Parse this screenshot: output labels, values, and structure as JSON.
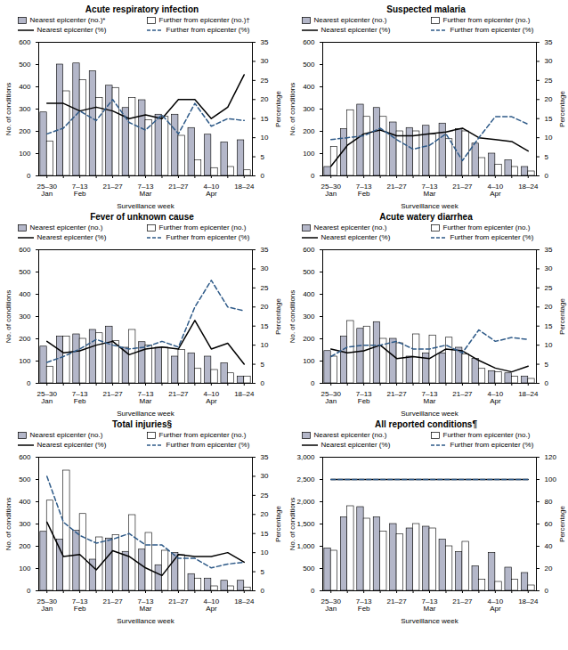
{
  "chart_data": [
    {
      "type": "bar",
      "title": "Acute respiratory infection",
      "x_label": "Surveillance week",
      "y_label": "No. of conditions",
      "y2_label": "Percentage",
      "legend": "top",
      "categories": [
        "25–30\nJan",
        null,
        "7–13\nFeb",
        null,
        "21–27",
        null,
        "7–13\nMar",
        null,
        "21–27",
        null,
        "4–10\nApr",
        null,
        "18–24"
      ],
      "ylim": [
        0,
        600
      ],
      "yticks": [
        0,
        100,
        200,
        300,
        400,
        500,
        600
      ],
      "y2lim": [
        0,
        35
      ],
      "y2ticks": [
        0,
        5,
        10,
        15,
        20,
        25,
        30,
        35
      ],
      "series": [
        {
          "name": "Nearest epicenter (no.)*",
          "type": "bar",
          "color": "#b4b7c9",
          "values": [
            285,
            500,
            505,
            470,
            405,
            305,
            340,
            275,
            275,
            215,
            185,
            150,
            160
          ]
        },
        {
          "name": "Further from epicenter (no.)†",
          "type": "bar",
          "color": "#ffffff",
          "values": [
            155,
            380,
            430,
            350,
            395,
            350,
            250,
            265,
            180,
            70,
            35,
            40,
            25
          ]
        },
        {
          "name": "Nearest epicenter (%)",
          "type": "line",
          "axis": "y2",
          "color": "#000000",
          "line_style": "solid",
          "values": [
            19,
            19,
            17,
            18,
            17,
            15,
            16,
            15,
            20,
            20,
            15,
            18,
            26.5
          ]
        },
        {
          "name": "Further from epicenter (%)",
          "type": "line",
          "axis": "y2",
          "color": "#2e5a88",
          "line_style": "dashed",
          "values": [
            11,
            12.5,
            17,
            14.5,
            20,
            14,
            12,
            16,
            11,
            19,
            13,
            15,
            14.5
          ]
        }
      ]
    },
    {
      "type": "bar",
      "title": "Suspected malaria",
      "x_label": "Surveillance week",
      "y_label": "No. of conditions",
      "y2_label": "Percentage",
      "legend": "top",
      "categories": [
        "25–30\nJan",
        null,
        "7–13\nFeb",
        null,
        "21–27",
        null,
        "7–13\nMar",
        null,
        "21–27",
        null,
        "4–10\nApr",
        null,
        "18–24"
      ],
      "ylim": [
        0,
        600
      ],
      "yticks": [
        0,
        100,
        200,
        300,
        400,
        500,
        600
      ],
      "y2lim": [
        0,
        35
      ],
      "y2ticks": [
        0,
        5,
        10,
        15,
        20,
        25,
        30,
        35
      ],
      "series": [
        {
          "name": "Nearest epicenter (no.)",
          "type": "bar",
          "color": "#b4b7c9",
          "values": [
            40,
            210,
            320,
            305,
            240,
            215,
            225,
            235,
            210,
            145,
            100,
            70,
            40
          ]
        },
        {
          "name": "Further from epicenter (no.)",
          "type": "bar",
          "color": "#ffffff",
          "values": [
            130,
            295,
            265,
            265,
            200,
            200,
            185,
            165,
            200,
            80,
            50,
            40,
            20
          ]
        },
        {
          "name": "Nearest epicenter (%)",
          "type": "line",
          "axis": "y2",
          "color": "#000000",
          "line_style": "solid",
          "values": [
            2.5,
            8,
            11,
            12,
            10.5,
            10.5,
            11,
            11.5,
            12.5,
            10,
            9.5,
            9,
            6.5
          ]
        },
        {
          "name": "Further from epicenter (%)",
          "type": "line",
          "axis": "y2",
          "color": "#2e5a88",
          "line_style": "dashed",
          "values": [
            9.5,
            10,
            10.5,
            12.5,
            9.5,
            7,
            8,
            11,
            4,
            10,
            15.5,
            15.5,
            13.5
          ]
        }
      ]
    },
    {
      "type": "bar",
      "title": "Fever of unknown cause",
      "x_label": "Surveillance week",
      "y_label": "No. of conditions",
      "y2_label": "Percentage",
      "legend": "top",
      "categories": [
        "25–30\nJan",
        null,
        "7–13\nFeb",
        null,
        "21–27",
        null,
        "7–13\nMar",
        null,
        "21–27",
        null,
        "4–10\nApr",
        null,
        "18–24"
      ],
      "ylim": [
        0,
        600
      ],
      "yticks": [
        0,
        100,
        200,
        300,
        400,
        500,
        600
      ],
      "y2lim": [
        0,
        35
      ],
      "y2ticks": [
        0,
        5,
        10,
        15,
        20,
        25,
        30,
        35
      ],
      "series": [
        {
          "name": "Nearest epicenter (no.)",
          "type": "bar",
          "color": "#b4b7c9",
          "values": [
            165,
            210,
            220,
            240,
            255,
            160,
            185,
            160,
            120,
            135,
            120,
            90,
            30
          ]
        },
        {
          "name": "Further from epicenter (no.)",
          "type": "bar",
          "color": "#ffffff",
          "values": [
            75,
            210,
            200,
            225,
            190,
            240,
            170,
            160,
            150,
            65,
            60,
            45,
            30
          ]
        },
        {
          "name": "Nearest epicenter (%)",
          "type": "line",
          "axis": "y2",
          "color": "#000000",
          "line_style": "solid",
          "values": [
            11,
            8,
            8.5,
            10,
            11,
            7.5,
            9,
            9.5,
            9,
            16.5,
            9,
            10.5,
            5
          ]
        },
        {
          "name": "Further from epicenter (%)",
          "type": "line",
          "axis": "y2",
          "color": "#2e5a88",
          "line_style": "dashed",
          "values": [
            5.5,
            7,
            9,
            11.5,
            10,
            9,
            9.5,
            11,
            9.5,
            20,
            27,
            20,
            19
          ]
        }
      ]
    },
    {
      "type": "bar",
      "title": "Acute watery diarrhea",
      "x_label": "Surveillance week",
      "y_label": "No. of conditions",
      "y2_label": "Percentage",
      "legend": "top",
      "categories": [
        "25–30\nJan",
        null,
        "7–13\nFeb",
        null,
        "21–27",
        null,
        "7–13\nMar",
        null,
        "21–27",
        null,
        "4–10\nApr",
        null,
        "18–24"
      ],
      "ylim": [
        0,
        600
      ],
      "yticks": [
        0,
        100,
        200,
        300,
        400,
        500,
        600
      ],
      "y2lim": [
        0,
        35
      ],
      "y2ticks": [
        0,
        5,
        10,
        15,
        20,
        25,
        30,
        35
      ],
      "series": [
        {
          "name": "Nearest epicenter (no.)",
          "type": "bar",
          "color": "#b4b7c9",
          "values": [
            145,
            210,
            245,
            275,
            200,
            120,
            135,
            135,
            160,
            110,
            55,
            45,
            30
          ]
        },
        {
          "name": "Further from epicenter (no.)",
          "type": "bar",
          "color": "#ffffff",
          "values": [
            120,
            280,
            255,
            200,
            180,
            220,
            215,
            205,
            130,
            65,
            50,
            30,
            20
          ]
        },
        {
          "name": "Nearest epicenter (%)",
          "type": "line",
          "axis": "y2",
          "color": "#000000",
          "line_style": "solid",
          "values": [
            9,
            8,
            8.5,
            10,
            6.5,
            7,
            6.5,
            9,
            8.5,
            6,
            4,
            3,
            4.5
          ]
        },
        {
          "name": "Further from epicenter (%)",
          "type": "line",
          "axis": "y2",
          "color": "#2e5a88",
          "line_style": "dashed",
          "values": [
            7,
            9.5,
            10,
            10,
            11,
            9,
            9,
            10,
            8,
            14,
            11,
            12,
            11.5
          ]
        }
      ]
    },
    {
      "type": "bar",
      "title": "Total injuries§",
      "x_label": "Surveillance week",
      "y_label": "No. of conditions",
      "y2_label": "Percentage",
      "legend": "top",
      "categories": [
        "25–30\nJan",
        null,
        "7–13\nFeb",
        null,
        "21–27",
        null,
        "7–13\nMar",
        null,
        "21–27",
        null,
        "4–10\nApr",
        null,
        "18–24"
      ],
      "ylim": [
        0,
        600
      ],
      "yticks": [
        0,
        100,
        200,
        300,
        400,
        500,
        600
      ],
      "y2lim": [
        0,
        35
      ],
      "y2ticks": [
        0,
        5,
        10,
        15,
        20,
        25,
        30,
        35
      ],
      "series": [
        {
          "name": "Nearest epicenter (no.)",
          "type": "bar",
          "color": "#b4b7c9",
          "values": [
            265,
            230,
            270,
            140,
            235,
            175,
            185,
            115,
            170,
            75,
            55,
            45,
            45
          ]
        },
        {
          "name": "Further from epicenter (no.)",
          "type": "bar",
          "color": "#ffffff",
          "values": [
            405,
            540,
            345,
            240,
            250,
            340,
            260,
            180,
            160,
            55,
            20,
            20,
            15
          ]
        },
        {
          "name": "Nearest epicenter (%)",
          "type": "line",
          "axis": "y2",
          "color": "#000000",
          "line_style": "solid",
          "values": [
            18,
            9,
            9.5,
            5.5,
            10.5,
            9,
            6,
            4,
            9.5,
            9,
            9,
            10,
            7.5
          ]
        },
        {
          "name": "Further from epicenter (%)",
          "type": "line",
          "axis": "y2",
          "color": "#2e5a88",
          "line_style": "dashed",
          "values": [
            30,
            18,
            14.5,
            12.5,
            13.5,
            15,
            12,
            12,
            8.5,
            8.5,
            6,
            7,
            7.5
          ]
        }
      ]
    },
    {
      "type": "bar",
      "title": "All reported conditions¶",
      "x_label": "Surveillance week",
      "y_label": "No. of conditions",
      "y2_label": "Percentage",
      "legend": "top",
      "categories": [
        "25–30\nJan",
        null,
        "7–13\nFeb",
        null,
        "21–27",
        null,
        "7–13\nMar",
        null,
        "21–27",
        null,
        "4–10\nApr",
        null,
        "18–24"
      ],
      "ylim": [
        0,
        3000
      ],
      "yticks": [
        0,
        500,
        {
          "value": 1000,
          "label": "1,000"
        },
        {
          "value": 1500,
          "label": "1,500"
        },
        {
          "value": 2000,
          "label": "2,000"
        },
        {
          "value": 2500,
          "label": "2,500"
        },
        {
          "value": 3000,
          "label": "3,000"
        }
      ],
      "y2lim": [
        0,
        120
      ],
      "y2ticks": [
        0,
        20,
        40,
        60,
        80,
        100,
        120
      ],
      "series": [
        {
          "name": "Nearest epicenter (no.)",
          "type": "bar",
          "color": "#b4b7c9",
          "values": [
            950,
            1650,
            1880,
            1650,
            1500,
            1400,
            1440,
            1150,
            870,
            550,
            850,
            520,
            400
          ]
        },
        {
          "name": "Further from epicenter (no.)",
          "type": "bar",
          "color": "#ffffff",
          "values": [
            900,
            1900,
            1620,
            1330,
            1270,
            1500,
            1400,
            1000,
            1100,
            250,
            200,
            250,
            120
          ]
        },
        {
          "name": "Nearest epicenter (%)",
          "type": "line",
          "axis": "y2",
          "color": "#000000",
          "line_style": "solid",
          "values": [
            100,
            100,
            100,
            100,
            100,
            100,
            100,
            100,
            100,
            100,
            100,
            100,
            100
          ]
        },
        {
          "name": "Further from epicenter (%)",
          "type": "line",
          "axis": "y2",
          "color": "#2e5a88",
          "line_style": "dashed",
          "values": [
            100,
            100,
            100,
            100,
            100,
            100,
            100,
            100,
            100,
            100,
            100,
            100,
            100
          ]
        }
      ]
    }
  ]
}
